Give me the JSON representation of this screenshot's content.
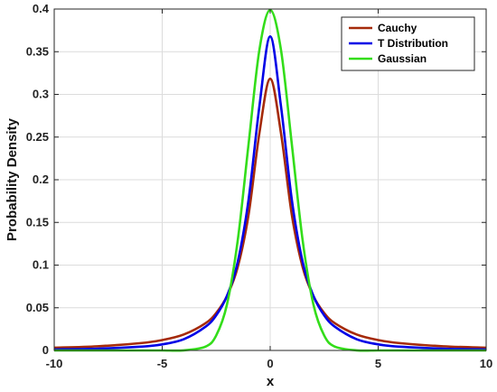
{
  "chart_data": {
    "type": "line",
    "title": "",
    "xlabel": "x",
    "ylabel": "Probability Density",
    "xlim": [
      -10,
      10
    ],
    "ylim": [
      0,
      0.4
    ],
    "x_ticks": [
      -10,
      -5,
      0,
      5,
      10
    ],
    "x_tick_labels": [
      "-10",
      "-5",
      "0",
      "5",
      "10"
    ],
    "y_ticks": [
      0,
      0.05,
      0.1,
      0.15,
      0.2,
      0.25,
      0.3,
      0.35,
      0.4
    ],
    "y_tick_labels": [
      "0",
      "0.05",
      "0.1",
      "0.15",
      "0.2",
      "0.25",
      "0.3",
      "0.35",
      "0.4"
    ],
    "grid": true,
    "legend_position": "top-right",
    "x": [
      -10,
      -8,
      -6,
      -5,
      -4,
      -3,
      -2.5,
      -2,
      -1.5,
      -1,
      -0.5,
      0,
      0.5,
      1,
      1.5,
      2,
      2.5,
      3,
      4,
      5,
      6,
      8,
      10
    ],
    "series": [
      {
        "name": "Cauchy",
        "color": "#a52a0a",
        "values": [
          0.0032,
          0.0049,
          0.0086,
          0.0122,
          0.0187,
          0.0318,
          0.0439,
          0.0637,
          0.0979,
          0.1592,
          0.2546,
          0.3183,
          0.2546,
          0.1592,
          0.0979,
          0.0637,
          0.0439,
          0.0318,
          0.0187,
          0.0122,
          0.0086,
          0.0049,
          0.0032
        ]
      },
      {
        "name": "T Distribution",
        "color": "#0000e6",
        "values": [
          0.0012,
          0.0021,
          0.0044,
          0.0071,
          0.0132,
          0.0277,
          0.0411,
          0.064,
          0.104,
          0.1768,
          0.286,
          0.368,
          0.286,
          0.1768,
          0.104,
          0.064,
          0.0411,
          0.0277,
          0.0132,
          0.0071,
          0.0044,
          0.0021,
          0.0012
        ]
      },
      {
        "name": "Gaussian",
        "color": "#33dd1a",
        "values": [
          0,
          0,
          0,
          1.5e-06,
          0.0001,
          0.0044,
          0.0175,
          0.054,
          0.1295,
          0.242,
          0.3521,
          0.3989,
          0.3521,
          0.242,
          0.1295,
          0.054,
          0.0175,
          0.0044,
          0.0001,
          1.5e-06,
          0,
          0,
          0
        ]
      }
    ]
  }
}
